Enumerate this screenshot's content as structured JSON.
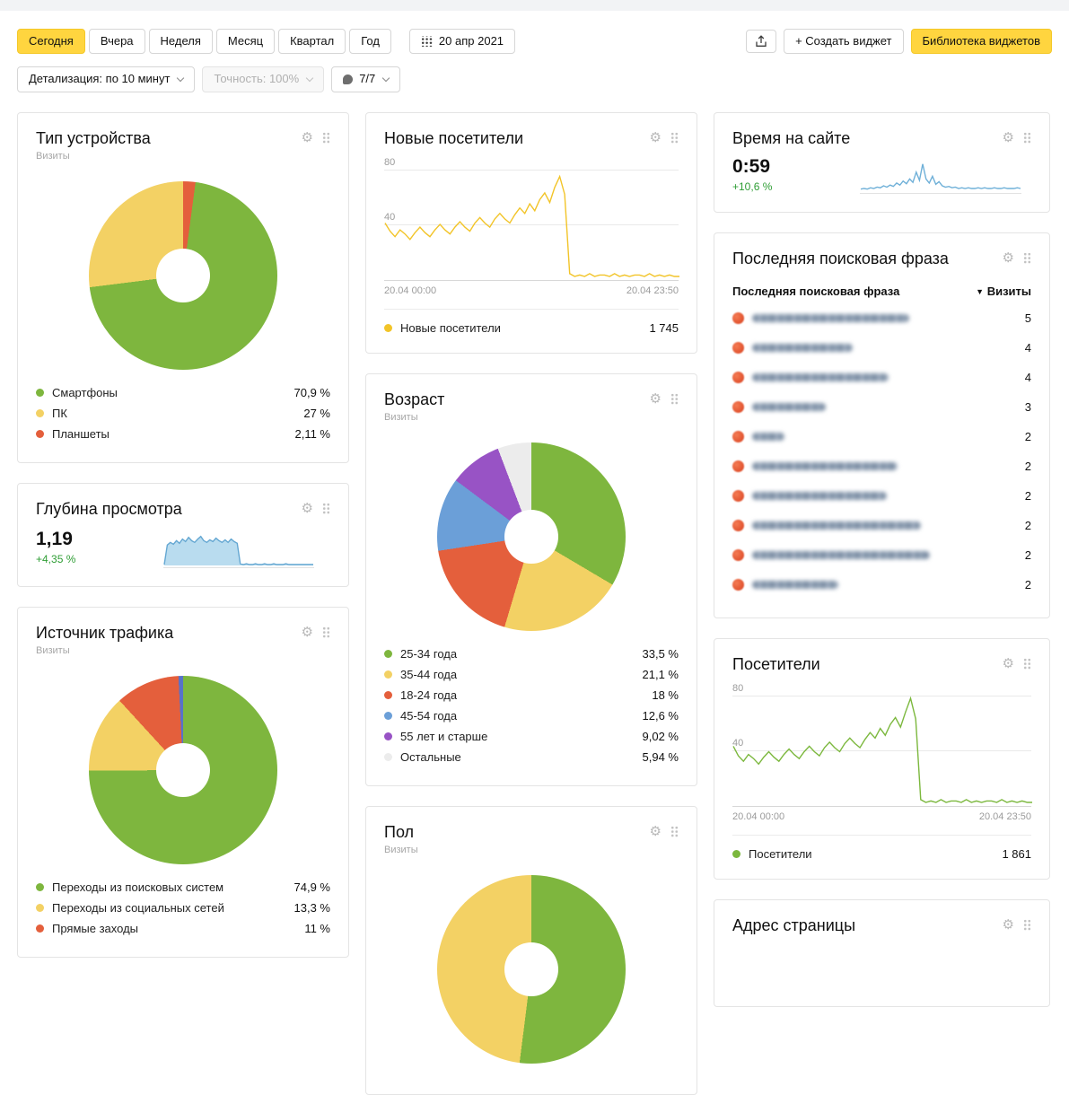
{
  "icons": {
    "gear": "⚙",
    "sort_desc": "▼"
  },
  "toolbar": {
    "periods": [
      {
        "label": "Сегодня",
        "selected": true
      },
      {
        "label": "Вчера",
        "selected": false
      },
      {
        "label": "Неделя",
        "selected": false
      },
      {
        "label": "Месяц",
        "selected": false
      },
      {
        "label": "Квартал",
        "selected": false
      },
      {
        "label": "Год",
        "selected": false
      }
    ],
    "date": "20 апр 2021",
    "create_widget": "+ Создать виджет",
    "library": "Библиотека виджетов",
    "detalization": "Детализация: по 10 минут",
    "accuracy": "Точность: 100%",
    "goals": "7/7"
  },
  "widgets": {
    "device_type": {
      "title": "Тип устройства",
      "subtitle": "Визиты",
      "chart_data": {
        "type": "pie",
        "donut": true,
        "slices_clockwise_from_top": [
          {
            "label": "Планшеты",
            "pct": 2.11,
            "color": "#e45f3c"
          },
          {
            "label": "Смартфоны",
            "pct": 70.9,
            "color": "#7eb63e"
          },
          {
            "label": "ПК",
            "pct": 27.0,
            "color": "#f3d164"
          }
        ],
        "legend": [
          {
            "label": "Смартфоны",
            "value": "70,9 %",
            "color": "#7eb63e"
          },
          {
            "label": "ПК",
            "value": "27 %",
            "color": "#f3d164"
          },
          {
            "label": "Планшеты",
            "value": "2,11 %",
            "color": "#e45f3c"
          }
        ]
      }
    },
    "page_depth": {
      "title": "Глубина просмотра",
      "value": "1,19",
      "delta": "+4,35 %",
      "chart_data": {
        "type": "area",
        "ymax": 40,
        "color": "#64a7d2",
        "fill": "#b9dcef",
        "values": [
          1,
          24,
          27,
          25,
          29,
          26,
          31,
          28,
          33,
          29,
          27,
          31,
          34,
          29,
          27,
          30,
          28,
          32,
          29,
          27,
          30,
          27,
          31,
          28,
          26,
          2,
          1,
          2,
          1,
          1,
          2,
          1,
          1,
          2,
          1,
          1,
          2,
          1,
          1,
          1,
          2,
          1,
          1,
          1,
          1,
          1,
          1,
          1,
          1,
          1
        ]
      }
    },
    "traffic_source": {
      "title": "Источник трафика",
      "subtitle": "Визиты",
      "chart_data": {
        "type": "pie",
        "donut": true,
        "slices_clockwise_from_top": [
          {
            "label": "Переходы из поисковых систем",
            "pct": 74.9,
            "color": "#7eb63e"
          },
          {
            "label": "Переходы из социальных сетей",
            "pct": 13.3,
            "color": "#f3d164"
          },
          {
            "label": "Прямые заходы",
            "pct": 11.0,
            "color": "#e45f3c"
          },
          {
            "label": "",
            "pct": 0.8,
            "color": "#5872c9"
          }
        ],
        "legend": [
          {
            "label": "Переходы из поисковых систем",
            "value": "74,9 %",
            "color": "#7eb63e"
          },
          {
            "label": "Переходы из социальных сетей",
            "value": "13,3 %",
            "color": "#f3d164"
          },
          {
            "label": "Прямые заходы",
            "value": "11 %",
            "color": "#e45f3c"
          }
        ]
      }
    },
    "new_visitors": {
      "title": "Новые посетители",
      "chart_data": {
        "type": "line",
        "ymax": 80,
        "yticks": [
          "80",
          "40"
        ],
        "x_start": "20.04 00:00",
        "x_end": "20.04 23:50",
        "color": "#f2c428",
        "values": [
          41,
          35,
          31,
          36,
          33,
          29,
          34,
          38,
          34,
          31,
          36,
          40,
          36,
          33,
          38,
          42,
          38,
          35,
          41,
          45,
          41,
          38,
          44,
          48,
          44,
          41,
          47,
          52,
          48,
          55,
          50,
          58,
          63,
          56,
          67,
          75,
          62,
          4,
          2,
          3,
          2,
          4,
          2,
          3,
          3,
          2,
          4,
          2,
          3,
          2,
          3,
          3,
          2,
          4,
          2,
          3,
          2,
          3,
          2,
          2
        ],
        "legend": {
          "label": "Новые посетители",
          "value": "1 745"
        }
      }
    },
    "age": {
      "title": "Возраст",
      "subtitle": "Визиты",
      "chart_data": {
        "type": "pie",
        "donut": true,
        "slices_clockwise_from_top": [
          {
            "label": "25-34 года",
            "pct": 33.5,
            "color": "#7eb63e"
          },
          {
            "label": "35-44 года",
            "pct": 21.1,
            "color": "#f3d164"
          },
          {
            "label": "18-24 года",
            "pct": 18.0,
            "color": "#e45f3c"
          },
          {
            "label": "45-54 года",
            "pct": 12.6,
            "color": "#6b9fd8"
          },
          {
            "label": "55 лет и старше",
            "pct": 9.02,
            "color": "#9853c5"
          },
          {
            "label": "Остальные",
            "pct": 5.94,
            "color": "#ececec"
          }
        ],
        "legend": [
          {
            "label": "25-34 года",
            "value": "33,5 %",
            "color": "#7eb63e"
          },
          {
            "label": "35-44 года",
            "value": "21,1 %",
            "color": "#f3d164"
          },
          {
            "label": "18-24 года",
            "value": "18 %",
            "color": "#e45f3c"
          },
          {
            "label": "45-54 года",
            "value": "12,6 %",
            "color": "#6b9fd8"
          },
          {
            "label": "55 лет и старше",
            "value": "9,02 %",
            "color": "#9853c5"
          },
          {
            "label": "Остальные",
            "value": "5,94 %",
            "color": "#ececec"
          }
        ]
      }
    },
    "gender": {
      "title": "Пол",
      "subtitle": "Визиты",
      "chart_data": {
        "type": "pie",
        "donut": true,
        "slices_clockwise_from_top": [
          {
            "label": "",
            "pct": 52,
            "color": "#7eb63e"
          },
          {
            "label": "",
            "pct": 48,
            "color": "#f3d164"
          }
        ]
      }
    },
    "time_on_site": {
      "title": "Время на сайте",
      "value": "0:59",
      "delta": "+10,6 %",
      "chart_data": {
        "type": "line",
        "ymax": 45,
        "color": "#6fb0d8",
        "values": [
          3,
          4,
          3,
          5,
          4,
          6,
          5,
          8,
          6,
          9,
          7,
          12,
          9,
          15,
          11,
          18,
          13,
          28,
          16,
          40,
          18,
          12,
          22,
          10,
          14,
          8,
          6,
          7,
          5,
          6,
          4,
          5,
          4,
          5,
          4,
          4,
          5,
          4,
          5,
          4,
          4,
          5,
          4,
          4,
          5,
          4,
          4,
          4,
          5,
          4
        ]
      }
    },
    "search_phrases": {
      "title": "Последняя поисковая фраза",
      "col_phrase": "Последняя поисковая фраза",
      "col_visits": "Визиты",
      "rows": [
        {
          "visits": "5",
          "blur_width": 175
        },
        {
          "visits": "4",
          "blur_width": 112
        },
        {
          "visits": "4",
          "blur_width": 152
        },
        {
          "visits": "3",
          "blur_width": 82
        },
        {
          "visits": "2",
          "blur_width": 36
        },
        {
          "visits": "2",
          "blur_width": 162
        },
        {
          "visits": "2",
          "blur_width": 150
        },
        {
          "visits": "2",
          "blur_width": 188
        },
        {
          "visits": "2",
          "blur_width": 198
        },
        {
          "visits": "2",
          "blur_width": 96
        }
      ]
    },
    "visitors": {
      "title": "Посетители",
      "chart_data": {
        "type": "line",
        "ymax": 80,
        "yticks": [
          "80",
          "40"
        ],
        "x_start": "20.04 00:00",
        "x_end": "20.04 23:50",
        "color": "#7cb83e",
        "values": [
          43,
          36,
          32,
          37,
          34,
          30,
          35,
          39,
          35,
          32,
          37,
          41,
          37,
          34,
          39,
          43,
          39,
          36,
          42,
          46,
          42,
          39,
          45,
          49,
          45,
          42,
          48,
          53,
          49,
          56,
          51,
          59,
          64,
          57,
          68,
          78,
          63,
          4,
          2,
          3,
          2,
          4,
          2,
          3,
          3,
          2,
          4,
          2,
          3,
          2,
          3,
          3,
          2,
          4,
          2,
          3,
          2,
          3,
          2,
          2
        ],
        "legend": {
          "label": "Посетители",
          "value": "1 861"
        }
      }
    },
    "page_url": {
      "title": "Адрес страницы"
    }
  }
}
